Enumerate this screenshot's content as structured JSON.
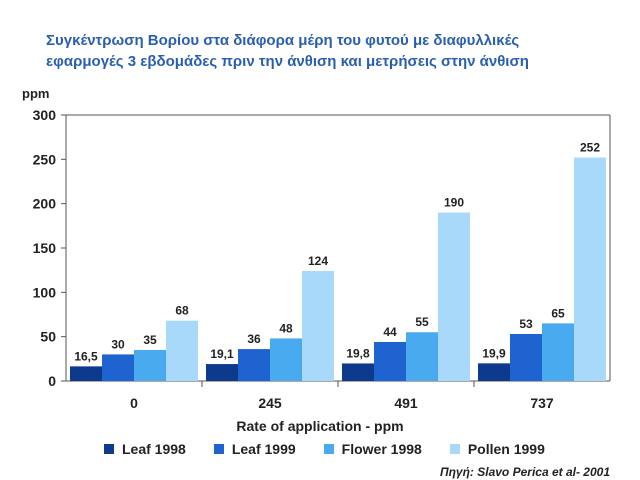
{
  "chart_data": {
    "type": "bar",
    "title_lines": [
      "Συγκέντρωση Βορίου στα διάφορα μέρη του φυτού με διαφυλλικές",
      "εφαρμογές 3 εβδομάδες πριν την άνθιση και μετρήσεις στην άνθιση"
    ],
    "ylabel": "ppm",
    "xlabel": "Rate of application - ppm",
    "categories": [
      "0",
      "245",
      "491",
      "737"
    ],
    "ylim": [
      0,
      300
    ],
    "yticks": [
      0,
      50,
      100,
      150,
      200,
      250,
      300
    ],
    "grid": false,
    "legend_position": "bottom",
    "series": [
      {
        "name": "Leaf 1998",
        "color": "#0d3a8c",
        "values": [
          16.5,
          19.1,
          19.8,
          19.9
        ],
        "labels": [
          "16,5",
          "19,1",
          "19,8",
          "19,9"
        ]
      },
      {
        "name": "Leaf 1999",
        "color": "#1e63d0",
        "values": [
          30,
          36,
          44,
          53
        ],
        "labels": [
          "30",
          "36",
          "44",
          "53"
        ]
      },
      {
        "name": "Flower  1998",
        "color": "#4aaaf0",
        "values": [
          35,
          48,
          55,
          65
        ],
        "labels": [
          "35",
          "48",
          "55",
          "65"
        ]
      },
      {
        "name": "Pollen 1999",
        "color": "#a8d8fa",
        "values": [
          68,
          124,
          190,
          252
        ],
        "labels": [
          "68",
          "124",
          "190",
          "252"
        ]
      }
    ],
    "source": "Πηγή: Slavo Perica et al- 2001"
  }
}
